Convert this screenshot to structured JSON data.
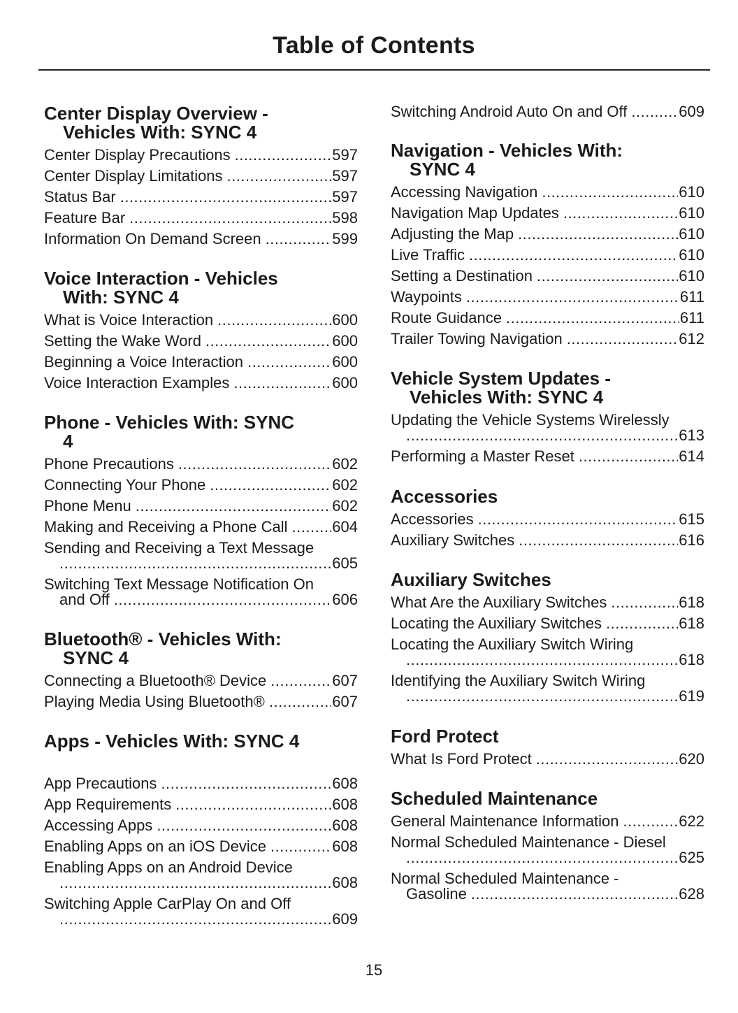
{
  "title": "Table of Contents",
  "page_number": "15",
  "columns": [
    [
      {
        "heading": [
          "Center Display Overview -",
          "Vehicles With: SYNC 4"
        ],
        "entries": [
          {
            "label": "Center Display Precautions",
            "page": "597"
          },
          {
            "label": "Center Display Limitations",
            "page": "597"
          },
          {
            "label": "Status Bar",
            "page": "597"
          },
          {
            "label": "Feature Bar",
            "page": "598"
          },
          {
            "label": "Information On Demand Screen",
            "page": "599"
          }
        ]
      },
      {
        "heading": [
          "Voice Interaction - Vehicles",
          "With: SYNC 4"
        ],
        "entries": [
          {
            "label": "What is Voice Interaction",
            "page": "600"
          },
          {
            "label": "Setting the Wake Word",
            "page": "600"
          },
          {
            "label": "Beginning a Voice Interaction",
            "page": "600"
          },
          {
            "label": "Voice Interaction Examples",
            "page": "600"
          }
        ]
      },
      {
        "heading": [
          "Phone - Vehicles With: SYNC",
          "4"
        ],
        "entries": [
          {
            "label": "Phone Precautions",
            "page": "602"
          },
          {
            "label": "Connecting Your Phone",
            "page": "602"
          },
          {
            "label": "Phone Menu",
            "page": "602"
          },
          {
            "label": "Making and Receiving a Phone Call",
            "page": "604"
          },
          {
            "label": "Sending and Receiving a Text Message",
            "label2": "",
            "page": "605"
          },
          {
            "label": "Switching Text Message Notification On",
            "label2": "and Off",
            "page": "606"
          }
        ]
      },
      {
        "heading": [
          "Bluetooth® - Vehicles With:",
          "SYNC 4"
        ],
        "entries": [
          {
            "label": "Connecting a Bluetooth® Device",
            "page": "607"
          },
          {
            "label": "Playing Media Using Bluetooth®",
            "page": "607"
          }
        ]
      },
      {
        "heading": [
          "Apps - Vehicles With: SYNC 4"
        ],
        "entries": [
          {
            "label": "App Precautions",
            "page": "608"
          },
          {
            "label": "App Requirements",
            "page": "608"
          },
          {
            "label": "Accessing Apps",
            "page": "608"
          },
          {
            "label": "Enabling Apps on an iOS Device",
            "page": "608"
          },
          {
            "label": "Enabling Apps on an Android Device",
            "label2": "",
            "page": "608"
          },
          {
            "label": "Switching Apple CarPlay On and Off",
            "label2": "",
            "page": "609"
          }
        ]
      }
    ],
    [
      {
        "heading": [],
        "entries": [
          {
            "label": "Switching Android Auto On and Off",
            "page": "609"
          }
        ]
      },
      {
        "heading": [
          "Navigation - Vehicles With:",
          "SYNC 4"
        ],
        "entries": [
          {
            "label": "Accessing Navigation",
            "page": "610"
          },
          {
            "label": "Navigation Map Updates",
            "page": "610"
          },
          {
            "label": "Adjusting the Map",
            "page": "610"
          },
          {
            "label": "Live Traffic",
            "page": "610"
          },
          {
            "label": "Setting a Destination",
            "page": "610"
          },
          {
            "label": "Waypoints",
            "page": "611"
          },
          {
            "label": "Route Guidance",
            "page": "611"
          },
          {
            "label": "Trailer Towing Navigation",
            "page": "612"
          }
        ]
      },
      {
        "heading": [
          "Vehicle System Updates -",
          "Vehicles With: SYNC 4"
        ],
        "entries": [
          {
            "label": "Updating the Vehicle Systems Wirelessly",
            "label2": "",
            "page": "613"
          },
          {
            "label": "Performing a Master Reset",
            "page": "614"
          }
        ]
      },
      {
        "heading": [
          "Accessories"
        ],
        "entries": [
          {
            "label": "Accessories",
            "page": "615"
          },
          {
            "label": "Auxiliary Switches",
            "page": "616"
          }
        ]
      },
      {
        "heading": [
          "Auxiliary Switches"
        ],
        "entries": [
          {
            "label": "What Are the Auxiliary Switches",
            "page": "618"
          },
          {
            "label": "Locating the Auxiliary Switches",
            "page": "618"
          },
          {
            "label": "Locating the Auxiliary Switch Wiring",
            "label2": "",
            "page": "618"
          },
          {
            "label": "Identifying the Auxiliary Switch Wiring",
            "label2": "",
            "page": "619"
          }
        ]
      },
      {
        "heading": [
          "Ford Protect"
        ],
        "entries": [
          {
            "label": "What Is Ford Protect",
            "page": "620"
          }
        ]
      },
      {
        "heading": [
          "Scheduled Maintenance"
        ],
        "entries": [
          {
            "label": "General Maintenance Information",
            "page": "622"
          },
          {
            "label": "Normal Scheduled Maintenance - Diesel",
            "label2": "",
            "page": "625"
          },
          {
            "label": "Normal Scheduled Maintenance -",
            "label2": "Gasoline",
            "page": "628"
          }
        ]
      }
    ]
  ]
}
